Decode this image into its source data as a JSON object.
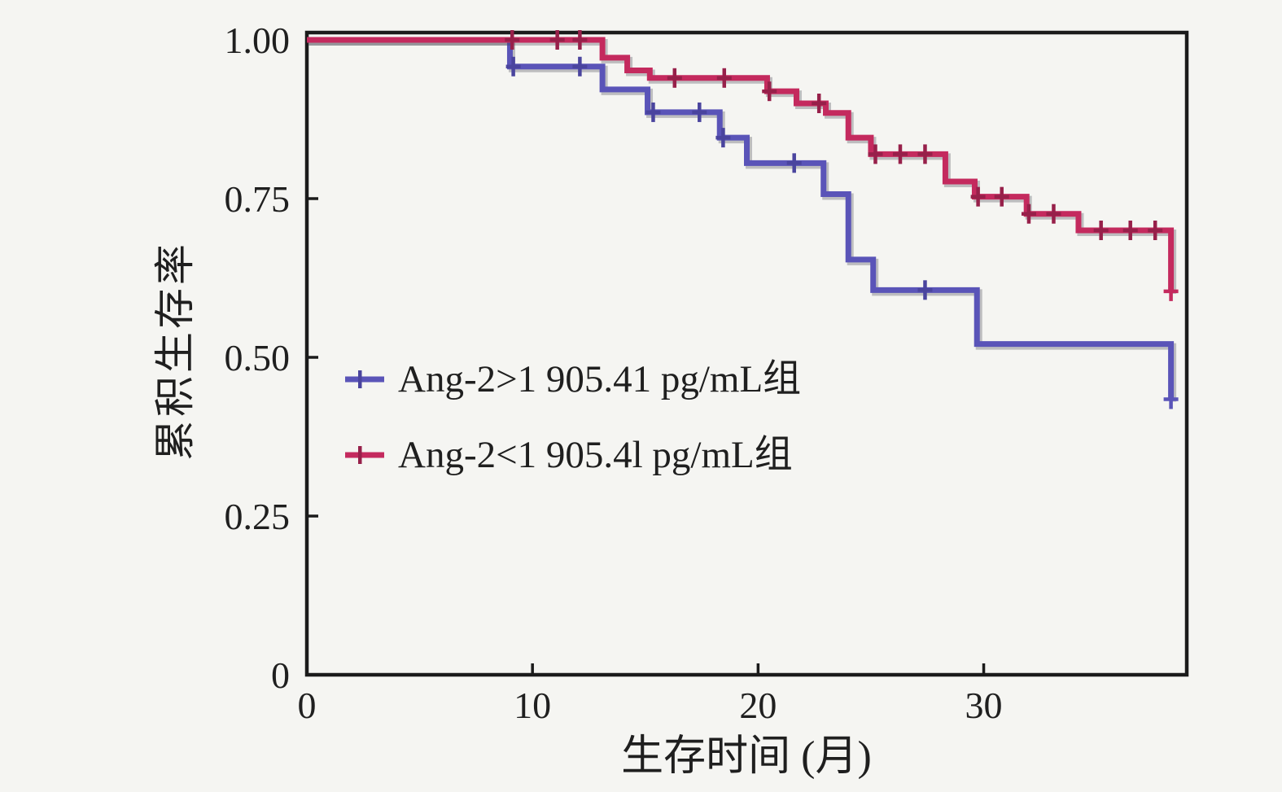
{
  "figure": {
    "background": "#f5f5f2",
    "axis_color": "#1b1b1b",
    "text_color": "#1f1f1f"
  },
  "chart_data": {
    "type": "line",
    "subtype": "kaplan-meier-step",
    "title": "",
    "xlabel": "生存时间 (月)",
    "ylabel": "累积生存率",
    "xlim": [
      0,
      39
    ],
    "ylim": [
      0,
      1.0
    ],
    "xticks": [
      0,
      10,
      20,
      30
    ],
    "xtick_labels": [
      "0",
      "10",
      "20",
      "30"
    ],
    "yticks": [
      0,
      0.25,
      0.5,
      0.75,
      1.0
    ],
    "ytick_labels": [
      "0",
      "0.25",
      "0.50",
      "0.75",
      "1.00"
    ],
    "grid": false,
    "legend_position": "inside-center-left",
    "series": [
      {
        "name": "Ang-2>1 905.41 pg/mL组",
        "color": "#5a54b8",
        "censor_color": "#4a449e",
        "steps": [
          [
            0,
            1.0
          ],
          [
            9.0,
            0.958
          ],
          [
            13.1,
            0.922
          ],
          [
            15.1,
            0.886
          ],
          [
            18.3,
            0.846
          ],
          [
            19.5,
            0.806
          ],
          [
            22.9,
            0.757
          ],
          [
            24.0,
            0.654
          ],
          [
            25.1,
            0.606
          ],
          [
            29.7,
            0.521
          ],
          [
            38.3,
            0.434
          ]
        ],
        "censors": [
          [
            9.15,
            0.958
          ],
          [
            12.1,
            0.958
          ],
          [
            15.35,
            0.886
          ],
          [
            17.4,
            0.886
          ],
          [
            18.45,
            0.846
          ],
          [
            21.6,
            0.806
          ],
          [
            27.4,
            0.606
          ],
          [
            38.3,
            0.434
          ]
        ]
      },
      {
        "name": "Ang-2<1 905.4l pg/mL组",
        "color": "#c42a5e",
        "censor_color": "#97204a",
        "steps": [
          [
            0,
            1.0
          ],
          [
            13.1,
            0.972
          ],
          [
            14.2,
            0.952
          ],
          [
            15.2,
            0.94
          ],
          [
            20.4,
            0.919
          ],
          [
            21.7,
            0.9
          ],
          [
            23.0,
            0.885
          ],
          [
            24.0,
            0.846
          ],
          [
            25.0,
            0.82
          ],
          [
            28.3,
            0.777
          ],
          [
            29.6,
            0.753
          ],
          [
            31.9,
            0.726
          ],
          [
            34.2,
            0.7
          ],
          [
            38.3,
            0.604
          ]
        ],
        "censors": [
          [
            9.1,
            1.0
          ],
          [
            11.1,
            1.0
          ],
          [
            12.1,
            1.0
          ],
          [
            16.3,
            0.94
          ],
          [
            18.5,
            0.94
          ],
          [
            20.5,
            0.919
          ],
          [
            22.7,
            0.9
          ],
          [
            25.2,
            0.82
          ],
          [
            26.3,
            0.82
          ],
          [
            27.4,
            0.82
          ],
          [
            29.75,
            0.753
          ],
          [
            30.8,
            0.753
          ],
          [
            32.0,
            0.726
          ],
          [
            33.1,
            0.726
          ],
          [
            35.2,
            0.7
          ],
          [
            36.5,
            0.7
          ],
          [
            37.6,
            0.7
          ],
          [
            38.3,
            0.604
          ]
        ]
      }
    ]
  }
}
